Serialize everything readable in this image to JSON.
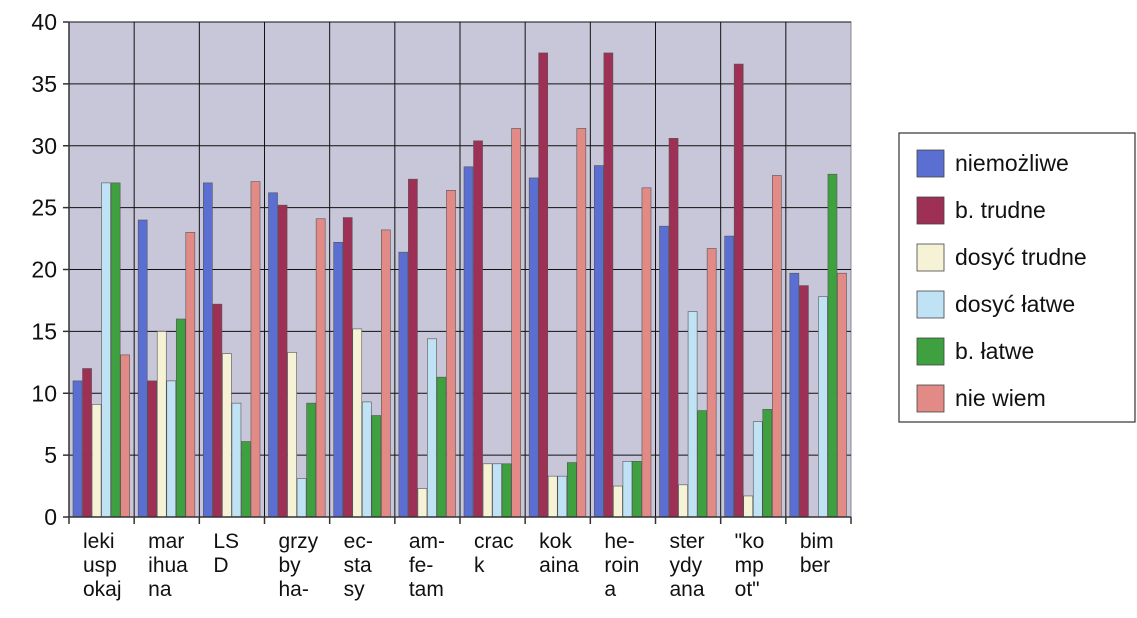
{
  "chart_data": {
    "type": "bar",
    "title": "",
    "xlabel": "",
    "ylabel": "",
    "ylim": [
      0,
      40
    ],
    "yticks": [
      0,
      5,
      10,
      15,
      20,
      25,
      30,
      35,
      40
    ],
    "grid": true,
    "legend_position": "right",
    "plot_background": "#c8c6d9",
    "categories": [
      [
        "leki",
        "usp",
        "okaj"
      ],
      [
        "mar",
        "ihua",
        "na"
      ],
      [
        "LS",
        "D"
      ],
      [
        "grzy",
        "by",
        "ha-"
      ],
      [
        "ec-",
        "sta",
        "sy"
      ],
      [
        "am-",
        "fe-",
        "tam"
      ],
      [
        "crac",
        "k"
      ],
      [
        "kok",
        "aina"
      ],
      [
        "he-",
        "roin",
        "a"
      ],
      [
        "ster",
        "ydy",
        "ana"
      ],
      [
        "\"ko",
        "mp",
        "ot\""
      ],
      [
        "bim",
        "ber"
      ]
    ],
    "series": [
      {
        "name": "niemożliwe",
        "color": "#5b6ed2",
        "values": [
          11,
          24,
          27,
          26.2,
          22.2,
          21.4,
          28.3,
          27.4,
          28.4,
          23.5,
          22.7,
          19.7
        ]
      },
      {
        "name": "b. trudne",
        "color": "#9e3055",
        "values": [
          12,
          11,
          17.2,
          25.2,
          24.2,
          27.3,
          30.4,
          37.5,
          37.5,
          30.6,
          36.6,
          18.7
        ]
      },
      {
        "name": "dosyć trudne",
        "color": "#f6f2d6",
        "values": [
          9.1,
          15,
          13.2,
          13.3,
          15.2,
          2.3,
          4.3,
          3.3,
          2.5,
          2.6,
          1.7,
          0
        ]
      },
      {
        "name": "dosyć łatwe",
        "color": "#bfe2f5",
        "values": [
          27,
          11,
          9.2,
          3.1,
          9.3,
          14.4,
          4.3,
          3.3,
          4.5,
          16.6,
          7.7,
          17.8
        ]
      },
      {
        "name": "b. łatwe",
        "color": "#3fa040",
        "values": [
          27,
          16,
          6.1,
          9.2,
          8.2,
          11.3,
          4.3,
          4.4,
          4.5,
          8.6,
          8.7,
          27.7
        ]
      },
      {
        "name": "nie wiem",
        "color": "#e28b86",
        "values": [
          13.1,
          23,
          27.1,
          24.1,
          23.2,
          26.4,
          31.4,
          31.4,
          26.6,
          21.7,
          27.6,
          19.7
        ]
      }
    ]
  }
}
